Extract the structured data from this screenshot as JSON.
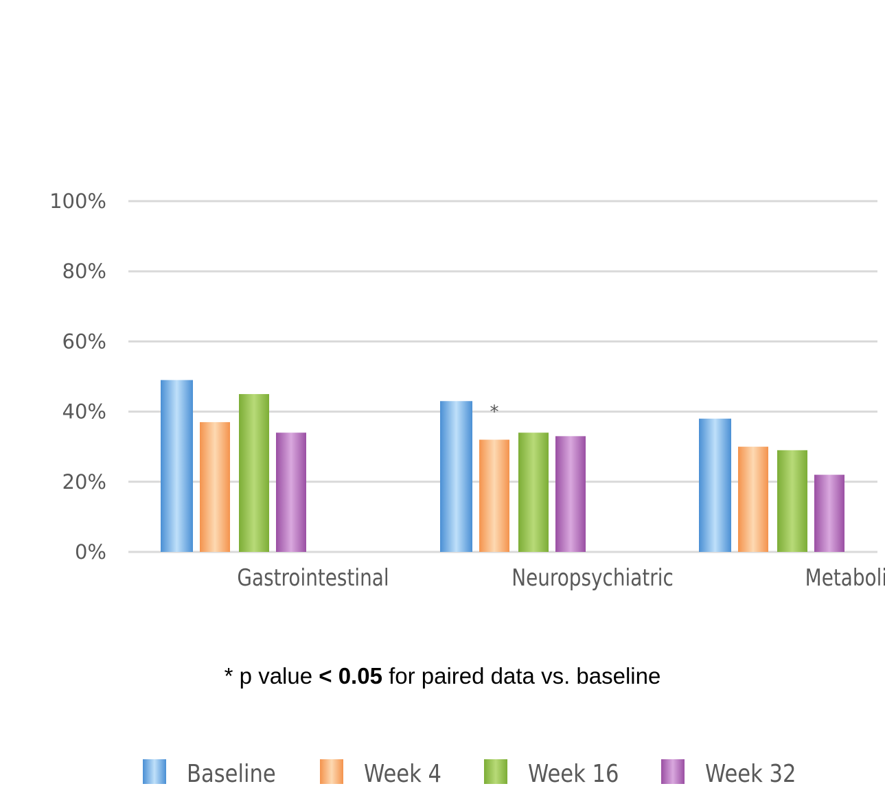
{
  "chart_data": {
    "type": "bar",
    "categories": [
      "Gastrointestinal",
      "Neuropsychiatric",
      "Metabolic"
    ],
    "series": [
      {
        "name": "Baseline",
        "values": [
          49,
          43,
          38
        ]
      },
      {
        "name": "Week 4",
        "values": [
          37,
          32,
          30
        ]
      },
      {
        "name": "Week 16",
        "values": [
          45,
          34,
          29
        ]
      },
      {
        "name": "Week 32",
        "values": [
          34,
          33,
          22
        ]
      }
    ],
    "ylim": [
      0,
      100
    ],
    "yticks": [
      "0%",
      "20%",
      "40%",
      "60%",
      "80%",
      "100%"
    ],
    "ytick_values": [
      0,
      20,
      40,
      60,
      80,
      100
    ],
    "grid": true,
    "legend_position": "bottom",
    "annotations": [
      {
        "text": "*",
        "category": "Neuropsychiatric",
        "series": "Week 4"
      }
    ],
    "colors": {
      "Baseline": "#4a8fd4",
      "Week 4": "#f4934d",
      "Week 16": "#7cad36",
      "Week 32": "#9a4fa3"
    },
    "xlabel": "",
    "ylabel": ""
  },
  "footnote": {
    "prefix": "* p value ",
    "bold": "< 0.05",
    "suffix": " for paired data vs. baseline"
  }
}
